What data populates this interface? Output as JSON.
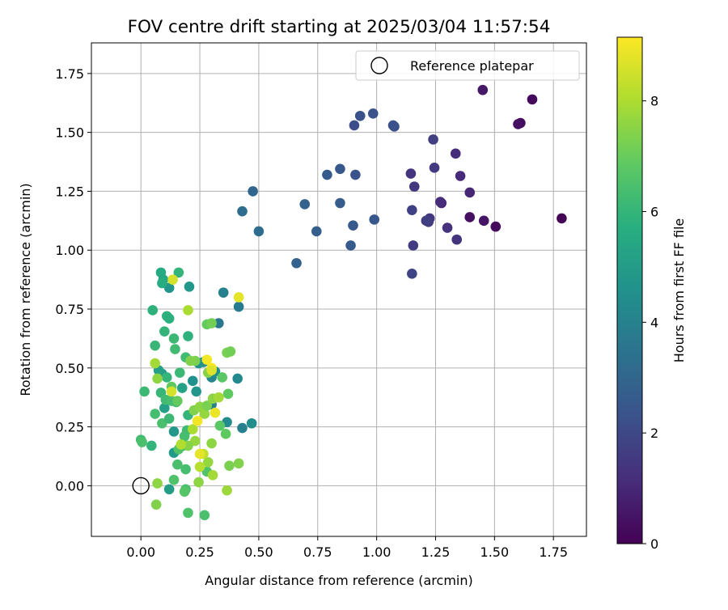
{
  "chart_data": {
    "type": "scatter",
    "title": "FOV centre drift starting at 2025/03/04 11:57:54",
    "xlabel": "Angular distance from reference (arcmin)",
    "ylabel": "Rotation from reference (arcmin)",
    "xlim": [
      -0.21,
      1.89
    ],
    "ylim": [
      -0.215,
      1.88
    ],
    "x_ticks": [
      0.0,
      0.25,
      0.5,
      0.75,
      1.0,
      1.25,
      1.5,
      1.75
    ],
    "x_tick_labels": [
      "0.00",
      "0.25",
      "0.50",
      "0.75",
      "1.00",
      "1.25",
      "1.50",
      "1.75"
    ],
    "y_ticks": [
      0.0,
      0.25,
      0.5,
      0.75,
      1.0,
      1.25,
      1.5,
      1.75
    ],
    "y_tick_labels": [
      "0.00",
      "0.25",
      "0.50",
      "0.75",
      "1.00",
      "1.25",
      "1.50",
      "1.75"
    ],
    "grid": true,
    "colormap": "viridis",
    "colorbar": {
      "label": "Hours from first FF file",
      "range": [
        0,
        9.15
      ],
      "ticks": [
        0,
        2,
        4,
        6,
        8
      ],
      "tick_labels": [
        "0",
        "2",
        "4",
        "6",
        "8"
      ]
    },
    "legend": {
      "position": "top-right",
      "entries": [
        {
          "label": "Reference platepar",
          "marker": "open-circle"
        }
      ]
    },
    "reference_point": {
      "x": 0.0,
      "y": 0.0
    },
    "points": [
      {
        "x": 1.66,
        "y": 1.64,
        "c": 0.2
      },
      {
        "x": 1.45,
        "y": 1.68,
        "c": 0.6
      },
      {
        "x": 1.61,
        "y": 1.54,
        "c": 0.3
      },
      {
        "x": 1.6,
        "y": 1.535,
        "c": 0.4
      },
      {
        "x": 1.785,
        "y": 1.135,
        "c": 0.1
      },
      {
        "x": 1.505,
        "y": 1.1,
        "c": 0.3
      },
      {
        "x": 1.455,
        "y": 1.125,
        "c": 0.5
      },
      {
        "x": 1.395,
        "y": 1.14,
        "c": 0.4
      },
      {
        "x": 1.395,
        "y": 1.245,
        "c": 1.0
      },
      {
        "x": 1.355,
        "y": 1.315,
        "c": 1.1
      },
      {
        "x": 1.335,
        "y": 1.41,
        "c": 1.2
      },
      {
        "x": 1.34,
        "y": 1.045,
        "c": 1.4
      },
      {
        "x": 1.3,
        "y": 1.095,
        "c": 1.3
      },
      {
        "x": 1.275,
        "y": 1.2,
        "c": 1.0
      },
      {
        "x": 1.27,
        "y": 1.205,
        "c": 1.2
      },
      {
        "x": 1.245,
        "y": 1.35,
        "c": 1.6
      },
      {
        "x": 1.24,
        "y": 1.47,
        "c": 1.7
      },
      {
        "x": 1.225,
        "y": 1.135,
        "c": 1.5
      },
      {
        "x": 1.22,
        "y": 1.12,
        "c": 1.6
      },
      {
        "x": 1.21,
        "y": 1.125,
        "c": 1.7
      },
      {
        "x": 1.16,
        "y": 1.27,
        "c": 1.5
      },
      {
        "x": 1.145,
        "y": 1.325,
        "c": 1.4
      },
      {
        "x": 1.155,
        "y": 1.02,
        "c": 1.6
      },
      {
        "x": 1.15,
        "y": 1.17,
        "c": 1.8
      },
      {
        "x": 1.15,
        "y": 0.9,
        "c": 1.9
      },
      {
        "x": 1.075,
        "y": 1.525,
        "c": 2.2
      },
      {
        "x": 1.07,
        "y": 1.53,
        "c": 2.3
      },
      {
        "x": 0.985,
        "y": 1.58,
        "c": 2.4
      },
      {
        "x": 0.99,
        "y": 1.13,
        "c": 2.5
      },
      {
        "x": 0.93,
        "y": 1.57,
        "c": 2.3
      },
      {
        "x": 0.905,
        "y": 1.53,
        "c": 2.2
      },
      {
        "x": 0.91,
        "y": 1.32,
        "c": 2.4
      },
      {
        "x": 0.9,
        "y": 1.105,
        "c": 2.6
      },
      {
        "x": 0.89,
        "y": 1.02,
        "c": 2.6
      },
      {
        "x": 0.845,
        "y": 1.345,
        "c": 2.5
      },
      {
        "x": 0.845,
        "y": 1.2,
        "c": 2.7
      },
      {
        "x": 0.79,
        "y": 1.32,
        "c": 2.6
      },
      {
        "x": 0.745,
        "y": 1.08,
        "c": 2.8
      },
      {
        "x": 0.695,
        "y": 1.195,
        "c": 2.9
      },
      {
        "x": 0.66,
        "y": 0.945,
        "c": 2.9
      },
      {
        "x": 0.475,
        "y": 1.25,
        "c": 3.0
      },
      {
        "x": 0.43,
        "y": 1.165,
        "c": 3.3
      },
      {
        "x": 0.5,
        "y": 1.08,
        "c": 3.3
      },
      {
        "x": 0.33,
        "y": 0.69,
        "c": 3.6
      },
      {
        "x": 0.415,
        "y": 0.76,
        "c": 3.8
      },
      {
        "x": 0.35,
        "y": 0.82,
        "c": 4.0
      },
      {
        "x": 0.41,
        "y": 0.455,
        "c": 4.3
      },
      {
        "x": 0.43,
        "y": 0.245,
        "c": 4.0
      },
      {
        "x": 0.47,
        "y": 0.265,
        "c": 4.5
      },
      {
        "x": 0.365,
        "y": 0.27,
        "c": 4.4
      },
      {
        "x": 0.3,
        "y": 0.345,
        "c": 4.1
      },
      {
        "x": 0.3,
        "y": 0.46,
        "c": 4.2
      },
      {
        "x": 0.315,
        "y": 0.485,
        "c": 4.6
      },
      {
        "x": 0.265,
        "y": 0.525,
        "c": 4.5
      },
      {
        "x": 0.245,
        "y": 0.52,
        "c": 4.7
      },
      {
        "x": 0.235,
        "y": 0.4,
        "c": 4.8
      },
      {
        "x": 0.22,
        "y": 0.445,
        "c": 4.6
      },
      {
        "x": 0.205,
        "y": 0.845,
        "c": 4.9
      },
      {
        "x": 0.12,
        "y": 0.84,
        "c": 4.8
      },
      {
        "x": 0.14,
        "y": 0.23,
        "c": 4.9
      },
      {
        "x": 0.14,
        "y": 0.14,
        "c": 5.0
      },
      {
        "x": 0.12,
        "y": -0.015,
        "c": 5.1
      },
      {
        "x": 0.09,
        "y": 0.475,
        "c": 5.0
      },
      {
        "x": 0.075,
        "y": 0.49,
        "c": 5.2
      },
      {
        "x": 0.1,
        "y": 0.33,
        "c": 5.2
      },
      {
        "x": 0.175,
        "y": 0.415,
        "c": 5.3
      },
      {
        "x": 0.085,
        "y": 0.905,
        "c": 5.6
      },
      {
        "x": 0.095,
        "y": 0.875,
        "c": 5.5
      },
      {
        "x": 0.09,
        "y": 0.86,
        "c": 5.7
      },
      {
        "x": 0.16,
        "y": 0.905,
        "c": 6.0
      },
      {
        "x": 0.11,
        "y": 0.72,
        "c": 5.9
      },
      {
        "x": 0.12,
        "y": 0.71,
        "c": 5.8
      },
      {
        "x": 0.05,
        "y": 0.745,
        "c": 5.9
      },
      {
        "x": 0.1,
        "y": 0.655,
        "c": 6.0
      },
      {
        "x": 0.2,
        "y": 0.635,
        "c": 5.9
      },
      {
        "x": 0.06,
        "y": 0.595,
        "c": 6.1
      },
      {
        "x": 0.14,
        "y": 0.625,
        "c": 6.2
      },
      {
        "x": 0.145,
        "y": 0.58,
        "c": 6.3
      },
      {
        "x": 0.19,
        "y": 0.545,
        "c": 6.3
      },
      {
        "x": 0.11,
        "y": 0.46,
        "c": 6.0
      },
      {
        "x": 0.165,
        "y": 0.48,
        "c": 6.2
      },
      {
        "x": 0.085,
        "y": 0.395,
        "c": 6.1
      },
      {
        "x": 0.015,
        "y": 0.4,
        "c": 6.2
      },
      {
        "x": 0.105,
        "y": 0.365,
        "c": 6.3
      },
      {
        "x": 0.13,
        "y": 0.36,
        "c": 6.4
      },
      {
        "x": 0.15,
        "y": 0.355,
        "c": 6.3
      },
      {
        "x": 0.06,
        "y": 0.305,
        "c": 6.4
      },
      {
        "x": 0.09,
        "y": 0.265,
        "c": 6.5
      },
      {
        "x": 0.12,
        "y": 0.285,
        "c": 6.2
      },
      {
        "x": 0.2,
        "y": 0.3,
        "c": 6.0
      },
      {
        "x": 0.195,
        "y": 0.235,
        "c": 6.3
      },
      {
        "x": 0.185,
        "y": 0.21,
        "c": 6.4
      },
      {
        "x": 0.18,
        "y": 0.17,
        "c": 6.5
      },
      {
        "x": 0.0,
        "y": 0.195,
        "c": 6.3
      },
      {
        "x": 0.005,
        "y": 0.185,
        "c": 6.5
      },
      {
        "x": 0.045,
        "y": 0.17,
        "c": 6.0
      },
      {
        "x": 0.16,
        "y": 0.155,
        "c": 6.6
      },
      {
        "x": 0.155,
        "y": 0.09,
        "c": 6.5
      },
      {
        "x": 0.19,
        "y": 0.07,
        "c": 6.4
      },
      {
        "x": 0.14,
        "y": 0.025,
        "c": 6.6
      },
      {
        "x": 0.19,
        "y": -0.015,
        "c": 6.5
      },
      {
        "x": 0.185,
        "y": -0.025,
        "c": 6.7
      },
      {
        "x": 0.2,
        "y": -0.115,
        "c": 6.6
      },
      {
        "x": 0.27,
        "y": -0.125,
        "c": 6.5
      },
      {
        "x": 0.28,
        "y": 0.06,
        "c": 6.6
      },
      {
        "x": 0.335,
        "y": 0.255,
        "c": 6.8
      },
      {
        "x": 0.36,
        "y": 0.22,
        "c": 6.9
      },
      {
        "x": 0.37,
        "y": 0.39,
        "c": 6.9
      },
      {
        "x": 0.345,
        "y": 0.46,
        "c": 6.8
      },
      {
        "x": 0.13,
        "y": 0.42,
        "c": 6.9
      },
      {
        "x": 0.155,
        "y": 0.36,
        "c": 7.0
      },
      {
        "x": 0.28,
        "y": 0.685,
        "c": 7.0
      },
      {
        "x": 0.3,
        "y": 0.69,
        "c": 7.2
      },
      {
        "x": 0.365,
        "y": 0.565,
        "c": 7.3
      },
      {
        "x": 0.38,
        "y": 0.57,
        "c": 7.2
      },
      {
        "x": 0.23,
        "y": 0.53,
        "c": 7.3
      },
      {
        "x": 0.21,
        "y": 0.53,
        "c": 7.4
      },
      {
        "x": 0.285,
        "y": 0.48,
        "c": 7.5
      },
      {
        "x": 0.07,
        "y": 0.455,
        "c": 7.6
      },
      {
        "x": 0.225,
        "y": 0.32,
        "c": 7.4
      },
      {
        "x": 0.25,
        "y": 0.335,
        "c": 7.6
      },
      {
        "x": 0.27,
        "y": 0.305,
        "c": 7.7
      },
      {
        "x": 0.28,
        "y": 0.34,
        "c": 7.3
      },
      {
        "x": 0.305,
        "y": 0.37,
        "c": 7.6
      },
      {
        "x": 0.33,
        "y": 0.375,
        "c": 7.9
      },
      {
        "x": 0.23,
        "y": 0.19,
        "c": 7.7
      },
      {
        "x": 0.2,
        "y": 0.17,
        "c": 7.5
      },
      {
        "x": 0.3,
        "y": 0.18,
        "c": 7.6
      },
      {
        "x": 0.375,
        "y": 0.085,
        "c": 7.3
      },
      {
        "x": 0.415,
        "y": 0.095,
        "c": 7.4
      },
      {
        "x": 0.07,
        "y": 0.01,
        "c": 7.6
      },
      {
        "x": 0.065,
        "y": -0.08,
        "c": 7.4
      },
      {
        "x": 0.245,
        "y": 0.015,
        "c": 7.6
      },
      {
        "x": 0.285,
        "y": 0.1,
        "c": 7.7
      },
      {
        "x": 0.305,
        "y": 0.045,
        "c": 7.9
      },
      {
        "x": 0.365,
        "y": -0.02,
        "c": 7.8
      },
      {
        "x": 0.06,
        "y": 0.52,
        "c": 7.9
      },
      {
        "x": 0.2,
        "y": 0.745,
        "c": 8.0
      },
      {
        "x": 0.17,
        "y": 0.175,
        "c": 8.1
      },
      {
        "x": 0.22,
        "y": 0.24,
        "c": 8.0
      },
      {
        "x": 0.25,
        "y": 0.08,
        "c": 8.2
      },
      {
        "x": 0.265,
        "y": 0.135,
        "c": 8.3
      },
      {
        "x": 0.135,
        "y": 0.875,
        "c": 8.6
      },
      {
        "x": 0.415,
        "y": 0.8,
        "c": 8.8
      },
      {
        "x": 0.28,
        "y": 0.535,
        "c": 9.0
      },
      {
        "x": 0.3,
        "y": 0.5,
        "c": 9.1
      },
      {
        "x": 0.3,
        "y": 0.49,
        "c": 8.7
      },
      {
        "x": 0.13,
        "y": 0.4,
        "c": 8.6
      },
      {
        "x": 0.315,
        "y": 0.31,
        "c": 8.9
      },
      {
        "x": 0.24,
        "y": 0.275,
        "c": 9.0
      },
      {
        "x": 0.25,
        "y": 0.135,
        "c": 8.8
      }
    ]
  }
}
